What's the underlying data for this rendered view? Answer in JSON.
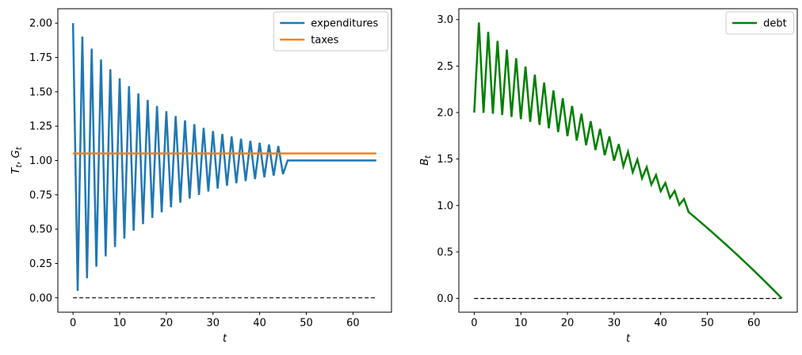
{
  "figure": {
    "background": "#ffffff",
    "text_color": "#000000",
    "spine_color": "#000000",
    "legend_border_color": "#cccccc"
  },
  "chart_data": [
    {
      "id": "left",
      "type": "line",
      "title": "",
      "xlabel": "t",
      "xlabel_parts": [
        {
          "t": "t",
          "i": true
        }
      ],
      "ylabel": "T_t, G_t",
      "ylabel_parts": [
        {
          "t": "T",
          "i": true
        },
        {
          "t": "t",
          "i": true,
          "sub": true
        },
        {
          "t": ", "
        },
        {
          "t": "G",
          "i": true
        },
        {
          "t": "t",
          "i": true,
          "sub": true
        }
      ],
      "xlim": [
        -3.25,
        68.25
      ],
      "ylim": [
        -0.105,
        2.105
      ],
      "xticks": [
        0,
        10,
        20,
        30,
        40,
        50,
        60
      ],
      "xtick_labels": [
        "0",
        "10",
        "20",
        "30",
        "40",
        "50",
        "60"
      ],
      "yticks": [
        0,
        0.25,
        0.5,
        0.75,
        1.0,
        1.25,
        1.5,
        1.75,
        2.0
      ],
      "ytick_labels": [
        "0.00",
        "0.25",
        "0.50",
        "0.75",
        "1.00",
        "1.25",
        "1.50",
        "1.75",
        "2.00"
      ],
      "grid": false,
      "legend": {
        "position": "upper right",
        "entries": [
          "expenditures",
          "taxes"
        ]
      },
      "zero_line": {
        "y": 0,
        "x_range": [
          0,
          65
        ],
        "style": "dashed",
        "color": "#000000"
      },
      "series": [
        {
          "name": "expenditures",
          "color": "#1f77b4",
          "line_width": 2,
          "x_start": 0,
          "x_step": 1,
          "values": [
            2.0,
            0.05,
            1.9025,
            0.1426,
            1.8145,
            0.2262,
            1.7351,
            0.3017,
            1.6634,
            0.3698,
            1.5987,
            0.4312,
            1.5404,
            0.4889,
            1.4877,
            0.5367,
            1.4401,
            0.5819,
            1.3972,
            0.6226,
            1.3585,
            0.6594,
            1.3235,
            0.6926,
            1.292,
            0.7226,
            1.2635,
            0.7497,
            1.2378,
            0.7741,
            1.2146,
            0.7961,
            1.1937,
            0.816,
            1.1748,
            0.8339,
            1.1578,
            0.8501,
            1.1424,
            0.8647,
            1.1285,
            0.8779,
            1.116,
            0.8898,
            1.1047,
            0.9006,
            1.0,
            1.0,
            1.0,
            1.0,
            1.0,
            1.0,
            1.0,
            1.0,
            1.0,
            1.0,
            1.0,
            1.0,
            1.0,
            1.0,
            1.0,
            1.0,
            1.0,
            1.0,
            1.0,
            1.0
          ]
        },
        {
          "name": "taxes",
          "color": "#ff7f0e",
          "line_width": 2,
          "constant": 1.0515,
          "x_range": [
            0,
            65
          ]
        }
      ]
    },
    {
      "id": "right",
      "type": "line",
      "title": "",
      "xlabel": "t",
      "xlabel_parts": [
        {
          "t": "t",
          "i": true
        }
      ],
      "ylabel": "B_t",
      "ylabel_parts": [
        {
          "t": "B",
          "i": true
        },
        {
          "t": "t",
          "i": true,
          "sub": true
        }
      ],
      "xlim": [
        -3.3,
        69.3
      ],
      "ylim": [
        -0.1484,
        3.1168
      ],
      "xticks": [
        0,
        10,
        20,
        30,
        40,
        50,
        60
      ],
      "xtick_labels": [
        "0",
        "10",
        "20",
        "30",
        "40",
        "50",
        "60"
      ],
      "yticks": [
        0,
        0.5,
        1.0,
        1.5,
        2.0,
        2.5,
        3.0
      ],
      "ytick_labels": [
        "0.0",
        "0.5",
        "1.0",
        "1.5",
        "2.0",
        "2.5",
        "3.0"
      ],
      "grid": false,
      "legend": {
        "position": "upper right",
        "entries": [
          "debt"
        ]
      },
      "zero_line": {
        "y": 0,
        "x_range": [
          0,
          66
        ],
        "style": "dashed",
        "color": "#000000"
      },
      "series": [
        {
          "name": "debt",
          "color": "#008000",
          "line_width": 2,
          "x_start": 0,
          "x_step": 1,
          "values": [
            2.0,
            2.9685,
            1.9967,
            2.8676,
            1.9874,
            2.7703,
            1.9727,
            2.676,
            1.953,
            2.5844,
            1.9285,
            2.495,
            1.8997,
            2.4075,
            1.8667,
            2.3216,
            1.83,
            2.2369,
            1.7897,
            2.1533,
            1.7459,
            2.0704,
            1.699,
            1.988,
            1.6491,
            1.906,
            1.5962,
            1.8242,
            1.5406,
            1.7423,
            1.4823,
            1.6602,
            1.4214,
            1.5778,
            1.3581,
            1.495,
            1.2923,
            1.4115,
            1.2243,
            1.3274,
            1.1539,
            1.2424,
            1.0813,
            1.1566,
            1.0064,
            1.0697,
            0.9294,
            0.8872,
            0.8446,
            0.8015,
            0.758,
            0.7141,
            0.6697,
            0.6249,
            0.5797,
            0.534,
            0.4878,
            0.4412,
            0.3941,
            0.3465,
            0.2985,
            0.25,
            0.201,
            0.1515,
            0.1015,
            0.051,
            0.0
          ]
        }
      ]
    }
  ]
}
